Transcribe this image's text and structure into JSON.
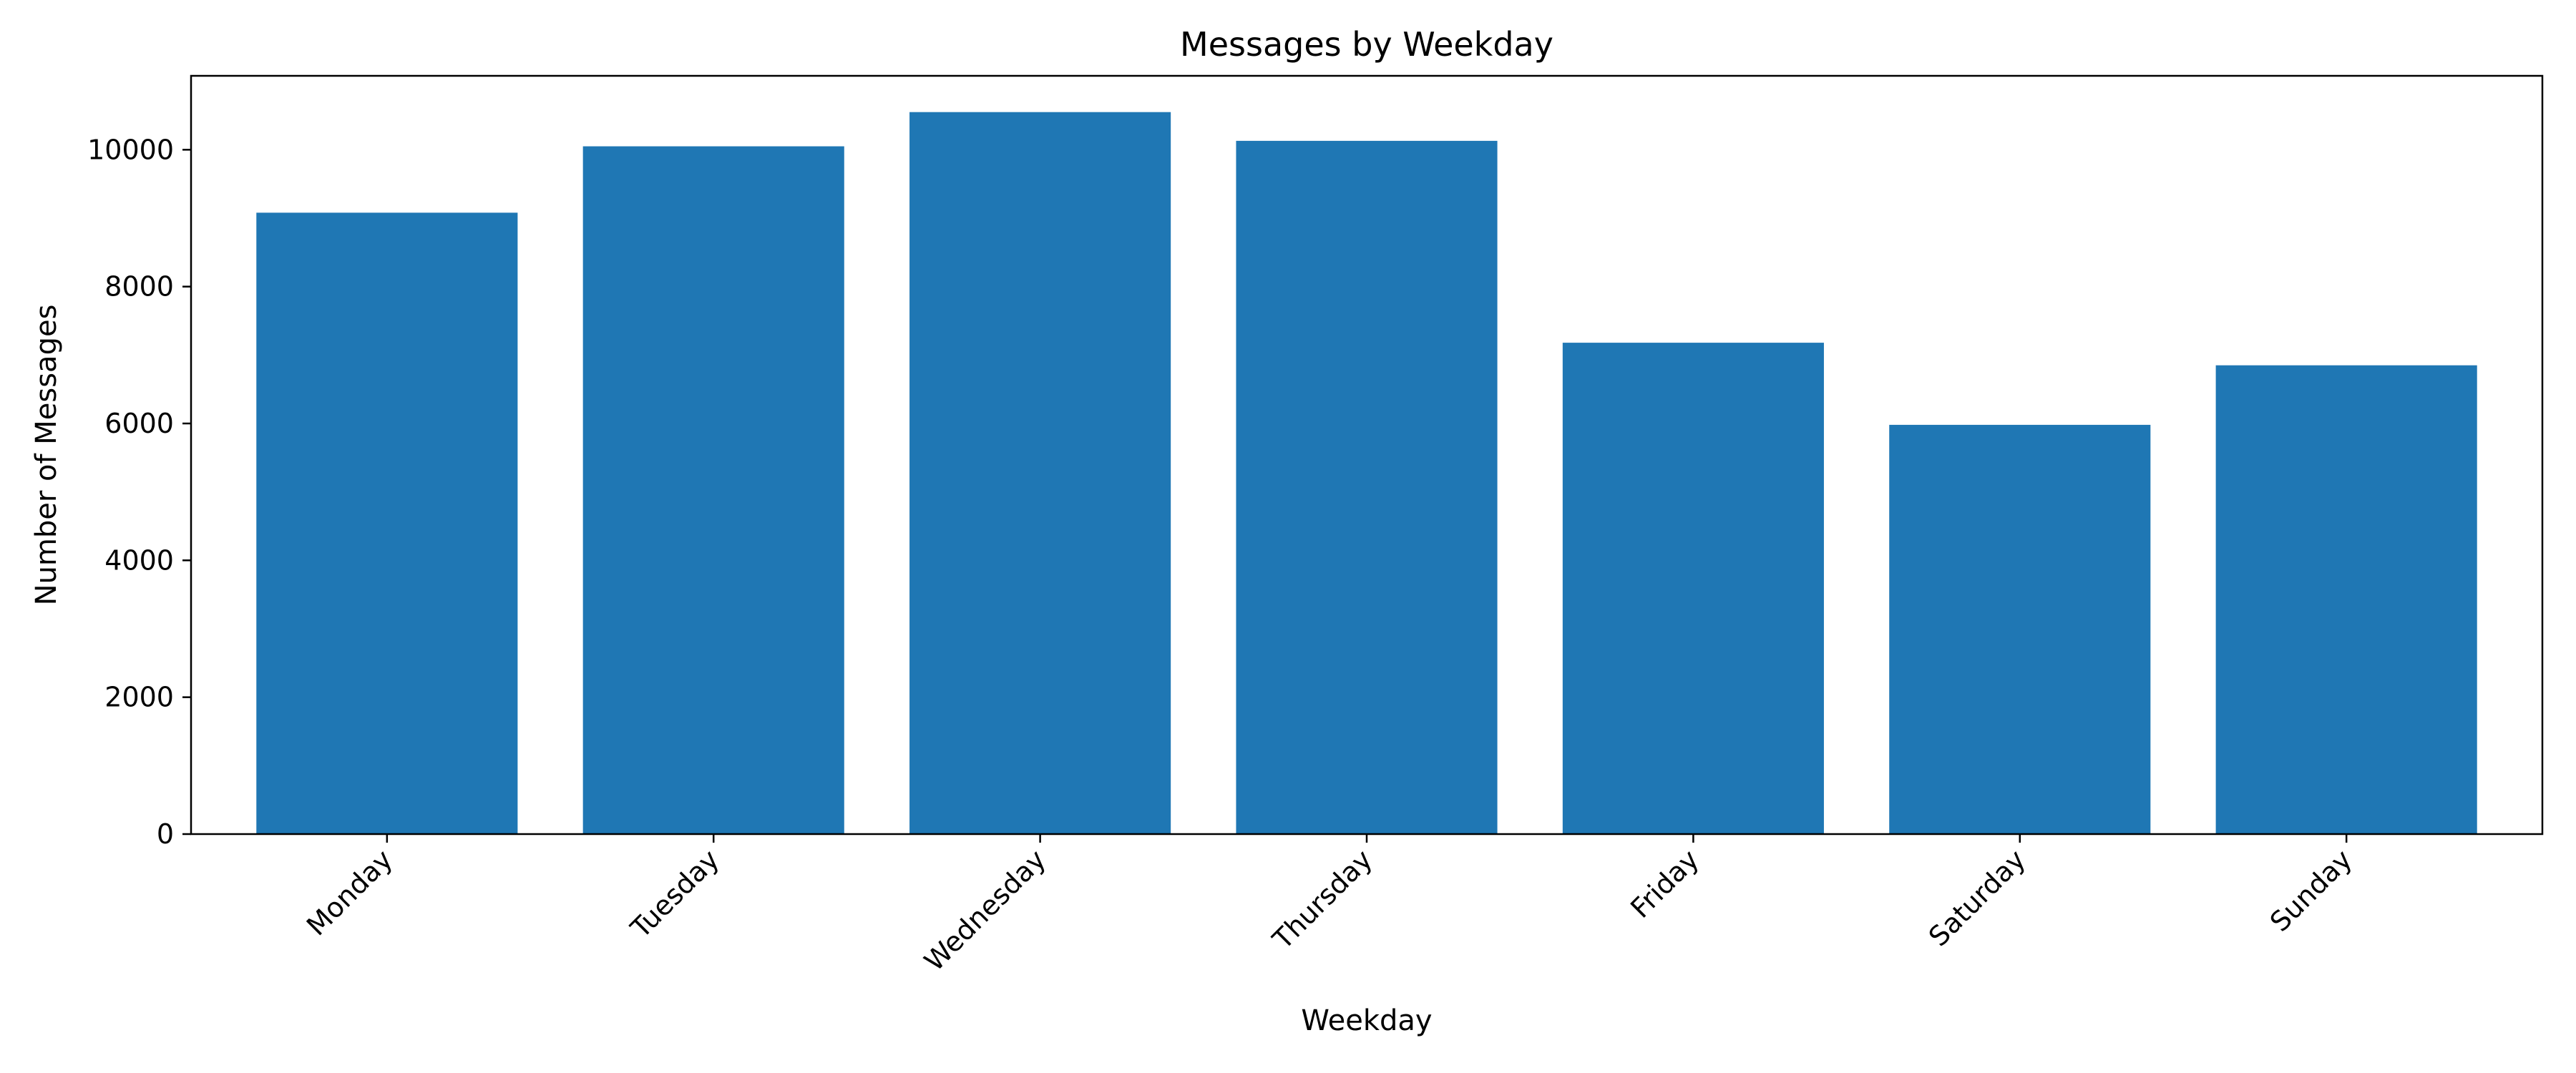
{
  "chart_data": {
    "type": "bar",
    "title": "Messages by Weekday",
    "xlabel": "Weekday",
    "ylabel": "Number of Messages",
    "categories": [
      "Monday",
      "Tuesday",
      "Wednesday",
      "Thursday",
      "Friday",
      "Saturday",
      "Sunday"
    ],
    "values": [
      9080,
      10050,
      10550,
      10130,
      7180,
      5980,
      6850
    ],
    "ylim": [
      0,
      11080
    ],
    "yticks": [
      0,
      2000,
      4000,
      6000,
      8000,
      10000
    ],
    "grid": false,
    "legend": "none",
    "bar_color": "#1f77b4",
    "xtick_rotation_deg": 45
  }
}
